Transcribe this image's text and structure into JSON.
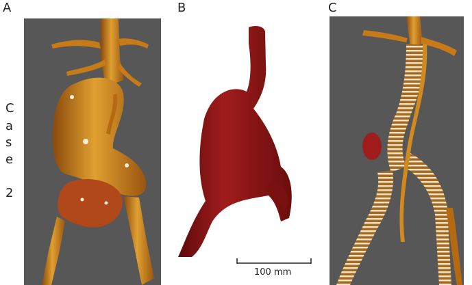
{
  "panels": {
    "a_label": "A",
    "b_label": "B",
    "c_label": "C"
  },
  "case_label": [
    "C",
    "a",
    "s",
    "e",
    "",
    "2"
  ],
  "scale_bar": {
    "label": "100 mm"
  },
  "colors": {
    "background_gray": "#575757",
    "vessel_orange": "#c9801a",
    "vessel_highlight": "#f2b43a",
    "mesh_red": "#8c1414",
    "stent_white": "#e8e2d0"
  }
}
